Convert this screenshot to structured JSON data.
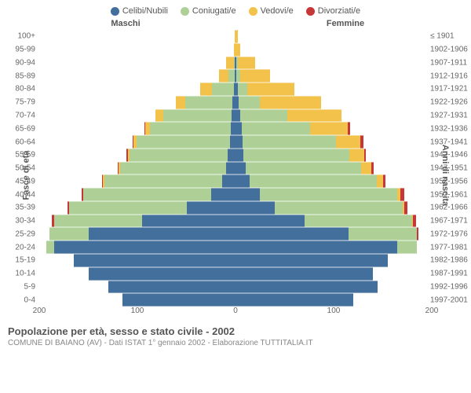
{
  "legend": [
    {
      "label": "Celibi/Nubili",
      "color": "#436f9c"
    },
    {
      "label": "Coniugati/e",
      "color": "#aed097"
    },
    {
      "label": "Vedovi/e",
      "color": "#f2c24a"
    },
    {
      "label": "Divorziati/e",
      "color": "#c83737"
    }
  ],
  "headers": {
    "male": "Maschi",
    "female": "Femmine"
  },
  "axis_left_title": "Fasce di età",
  "axis_right_title": "Anni di nascita",
  "x_max": 200,
  "x_ticks_left": [
    200,
    100,
    0
  ],
  "x_ticks_right": [
    0,
    100,
    200
  ],
  "grid_step": 50,
  "colors": {
    "single": "#436f9c",
    "married": "#aed097",
    "widowed": "#f2c24a",
    "divorced": "#c83737",
    "grid": "#ffffff",
    "center": "#999999",
    "bg": "#ffffff"
  },
  "rows": [
    {
      "age": "100+",
      "birth": "≤ 1901",
      "m": [
        0,
        0,
        1,
        0
      ],
      "f": [
        0,
        0,
        2,
        0
      ]
    },
    {
      "age": "95-99",
      "birth": "1902-1906",
      "m": [
        0,
        0,
        2,
        0
      ],
      "f": [
        0,
        0,
        5,
        0
      ]
    },
    {
      "age": "90-94",
      "birth": "1907-1911",
      "m": [
        1,
        1,
        8,
        0
      ],
      "f": [
        1,
        1,
        18,
        0
      ]
    },
    {
      "age": "85-89",
      "birth": "1912-1916",
      "m": [
        1,
        6,
        10,
        0
      ],
      "f": [
        1,
        4,
        30,
        0
      ]
    },
    {
      "age": "80-84",
      "birth": "1917-1921",
      "m": [
        2,
        22,
        12,
        0
      ],
      "f": [
        2,
        10,
        48,
        0
      ]
    },
    {
      "age": "75-79",
      "birth": "1922-1926",
      "m": [
        3,
        48,
        10,
        0
      ],
      "f": [
        3,
        22,
        62,
        0
      ]
    },
    {
      "age": "70-74",
      "birth": "1927-1931",
      "m": [
        4,
        70,
        8,
        0
      ],
      "f": [
        5,
        48,
        55,
        0
      ]
    },
    {
      "age": "65-69",
      "birth": "1932-1936",
      "m": [
        5,
        82,
        5,
        1
      ],
      "f": [
        6,
        70,
        38,
        3
      ]
    },
    {
      "age": "60-64",
      "birth": "1937-1941",
      "m": [
        6,
        95,
        3,
        1
      ],
      "f": [
        7,
        95,
        25,
        3
      ]
    },
    {
      "age": "55-59",
      "birth": "1942-1946",
      "m": [
        8,
        100,
        2,
        1
      ],
      "f": [
        8,
        108,
        15,
        2
      ]
    },
    {
      "age": "50-54",
      "birth": "1947-1951",
      "m": [
        10,
        108,
        1,
        1
      ],
      "f": [
        10,
        118,
        10,
        3
      ]
    },
    {
      "age": "45-49",
      "birth": "1952-1956",
      "m": [
        14,
        120,
        1,
        1
      ],
      "f": [
        14,
        130,
        6,
        3
      ]
    },
    {
      "age": "40-44",
      "birth": "1957-1961",
      "m": [
        25,
        130,
        0,
        2
      ],
      "f": [
        25,
        140,
        3,
        4
      ]
    },
    {
      "age": "35-39",
      "birth": "1962-1966",
      "m": [
        50,
        120,
        0,
        1
      ],
      "f": [
        40,
        130,
        2,
        3
      ]
    },
    {
      "age": "30-34",
      "birth": "1967-1971",
      "m": [
        95,
        90,
        0,
        2
      ],
      "f": [
        70,
        110,
        1,
        3
      ]
    },
    {
      "age": "25-29",
      "birth": "1972-1976",
      "m": [
        150,
        40,
        0,
        0
      ],
      "f": [
        115,
        70,
        0,
        1
      ]
    },
    {
      "age": "20-24",
      "birth": "1977-1981",
      "m": [
        185,
        8,
        0,
        0
      ],
      "f": [
        165,
        20,
        0,
        0
      ]
    },
    {
      "age": "15-19",
      "birth": "1982-1986",
      "m": [
        165,
        0,
        0,
        0
      ],
      "f": [
        155,
        0,
        0,
        0
      ]
    },
    {
      "age": "10-14",
      "birth": "1987-1991",
      "m": [
        150,
        0,
        0,
        0
      ],
      "f": [
        140,
        0,
        0,
        0
      ]
    },
    {
      "age": "5-9",
      "birth": "1992-1996",
      "m": [
        130,
        0,
        0,
        0
      ],
      "f": [
        145,
        0,
        0,
        0
      ]
    },
    {
      "age": "0-4",
      "birth": "1997-2001",
      "m": [
        115,
        0,
        0,
        0
      ],
      "f": [
        120,
        0,
        0,
        0
      ]
    }
  ],
  "footer": {
    "title": "Popolazione per età, sesso e stato civile - 2002",
    "subtitle": "COMUNE DI BAIANO (AV) - Dati ISTAT 1° gennaio 2002 - Elaborazione TUTTITALIA.IT"
  }
}
